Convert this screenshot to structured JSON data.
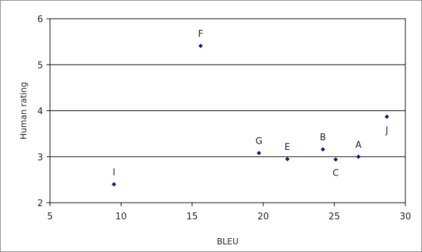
{
  "chart_data": {
    "type": "scatter",
    "title": "",
    "xlabel": "BLEU",
    "ylabel": "Human rating",
    "xlim": [
      5,
      30
    ],
    "ylim": [
      2,
      6
    ],
    "x_ticks": [
      5,
      10,
      15,
      20,
      25,
      30
    ],
    "y_ticks": [
      2,
      3,
      4,
      5,
      6
    ],
    "grid": "horizontal",
    "legend": "none",
    "marker_color": "#0b1a6e",
    "points": [
      {
        "label": "A",
        "x": 26.7,
        "y": 3.0,
        "label_pos": "above"
      },
      {
        "label": "B",
        "x": 24.2,
        "y": 3.16,
        "label_pos": "above"
      },
      {
        "label": "C",
        "x": 25.1,
        "y": 2.94,
        "label_pos": "below"
      },
      {
        "label": "E",
        "x": 21.7,
        "y": 2.95,
        "label_pos": "above"
      },
      {
        "label": "F",
        "x": 15.6,
        "y": 5.41,
        "label_pos": "above"
      },
      {
        "label": "G",
        "x": 19.7,
        "y": 3.08,
        "label_pos": "above"
      },
      {
        "label": "I",
        "x": 9.5,
        "y": 2.4,
        "label_pos": "above"
      },
      {
        "label": "J",
        "x": 28.7,
        "y": 3.87,
        "label_pos": "below"
      }
    ]
  }
}
